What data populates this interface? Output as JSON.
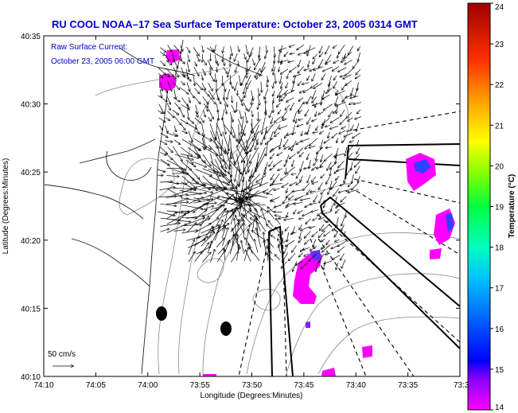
{
  "title": "RU COOL  NOAA–17  Sea Surface Temperature:  October 23, 2005 0314 GMT",
  "inset": {
    "line1": "Raw Surface Current:",
    "line2": "October 23, 2005 06:00 GMT"
  },
  "scale_label": "50 cm/s",
  "x_axis": {
    "label": "Longitude (Degrees:Minutes)",
    "ticks": [
      "74:10",
      "74:05",
      "74:00",
      "73:55",
      "73:50",
      "73:45",
      "73:40",
      "73:35",
      "73:3"
    ]
  },
  "y_axis": {
    "label": "Latitude (Degrees:Minutes)",
    "ticks": [
      "40:35",
      "40:30",
      "40:25",
      "40:20",
      "40:15",
      "40:10"
    ]
  },
  "colorbar": {
    "label": "Temperature (°C)",
    "ticks": [
      "24",
      "23",
      "22",
      "21",
      "20",
      "19",
      "18",
      "17",
      "16",
      "15",
      "14"
    ],
    "min": 14,
    "max": 24,
    "colors": [
      "#ff00ff",
      "#3000ff",
      "#0080ff",
      "#00e0ff",
      "#00ff80",
      "#80ff00",
      "#ffff00",
      "#ffa000",
      "#ff4000",
      "#e00000",
      "#a00000"
    ]
  },
  "colors": {
    "title": "#0000c8",
    "sst_patch": "#ff00ff",
    "sst_patch_cool": "#3040ff"
  }
}
